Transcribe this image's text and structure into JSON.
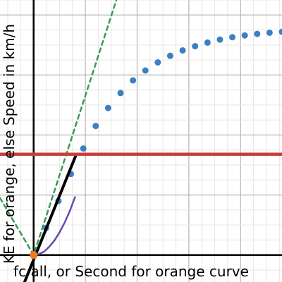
{
  "chart_data": {
    "type": "line",
    "xlabel": "fc all, or Second for orange curve",
    "ylabel": "KE for orange, else Speed in km/h",
    "xlim": [
      -1.3,
      9.6
    ],
    "ylim": [
      -0.9,
      8.5
    ],
    "grid": true,
    "colors": {
      "grid_major": "#b5b5b5",
      "grid_minor": "#e6e6e6",
      "axis": "#000000",
      "background": "#ffffff"
    },
    "series": [
      {
        "style": "dotted",
        "color": "#3d7fc4",
        "x": [
          0,
          0.48,
          0.96,
          1.44,
          1.92,
          2.4,
          2.88,
          3.36,
          3.84,
          4.32,
          4.8,
          5.28,
          5.76,
          6.24,
          6.72,
          7.2,
          7.68,
          8.16,
          8.64,
          9.12,
          9.6
        ],
        "y": [
          0,
          0.9,
          1.8,
          2.7,
          3.55,
          4.3,
          4.9,
          5.4,
          5.82,
          6.15,
          6.42,
          6.64,
          6.82,
          6.96,
          7.08,
          7.18,
          7.26,
          7.32,
          7.37,
          7.41,
          7.44
        ]
      },
      {
        "style": "dashed",
        "color": "#3a9a5c",
        "x": [
          -1.3,
          0,
          3.2
        ],
        "y": [
          1.9,
          0,
          8.5
        ]
      },
      {
        "style": "solid",
        "color": "#000000",
        "x": [
          -0.35,
          1.65
        ],
        "y": [
          -0.9,
          3.36
        ]
      },
      {
        "style": "solid",
        "color": "#6a4aad",
        "x": [
          0,
          0.2,
          0.4,
          0.6,
          0.8,
          1.0,
          1.2,
          1.4,
          1.6
        ],
        "y": [
          0,
          0.03,
          0.11,
          0.27,
          0.48,
          0.75,
          1.08,
          1.47,
          1.93
        ]
      },
      {
        "style": "solid",
        "color": "#c8403a",
        "x": [
          -1.3,
          9.6
        ],
        "y": [
          3.36,
          3.36
        ]
      }
    ],
    "points": [
      {
        "color": "#f07a1e",
        "x": 0,
        "y": 0
      }
    ]
  }
}
